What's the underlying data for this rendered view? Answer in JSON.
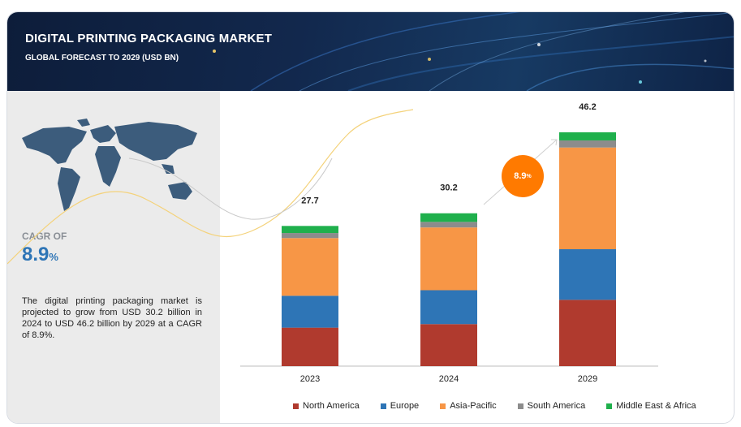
{
  "header": {
    "title": "DIGITAL PRINTING PACKAGING MARKET",
    "subtitle": "GLOBAL FORECAST TO 2029 (USD BN)"
  },
  "left_panel": {
    "cagr_label": "CAGR OF",
    "cagr_value": "8.9",
    "cagr_unit": "%",
    "description": "The digital printing packaging market is projected to grow from USD  30.2 billion in 2024 to USD  46.2 billion by 2029 at a CAGR of 8.9%."
  },
  "badge": {
    "value": "8.9",
    "unit": "%"
  },
  "colors": {
    "north_america": "#b03a2e",
    "europe": "#2e75b6",
    "asia_pacific": "#f79646",
    "south_america": "#8c8c8c",
    "middle_east_africa": "#1fb04c",
    "accent": "#ff7a00"
  },
  "chart_data": {
    "type": "bar",
    "stacked": true,
    "categories": [
      "2023",
      "2024",
      "2029"
    ],
    "totals": [
      "27.7",
      "30.2",
      "46.2"
    ],
    "series": [
      {
        "name": "North America",
        "color": "#b03a2e",
        "values": [
          7.6,
          8.3,
          13.1
        ]
      },
      {
        "name": "Europe",
        "color": "#2e75b6",
        "values": [
          6.3,
          6.7,
          10.0
        ]
      },
      {
        "name": "Asia-Pacific",
        "color": "#f79646",
        "values": [
          11.4,
          12.4,
          20.1
        ]
      },
      {
        "name": "South America",
        "color": "#8c8c8c",
        "values": [
          1.0,
          1.1,
          1.4
        ]
      },
      {
        "name": "Middle East & Africa",
        "color": "#1fb04c",
        "values": [
          1.4,
          1.7,
          1.6
        ]
      }
    ],
    "ylim": [
      0,
      46.2
    ],
    "legend_position": "bottom"
  }
}
